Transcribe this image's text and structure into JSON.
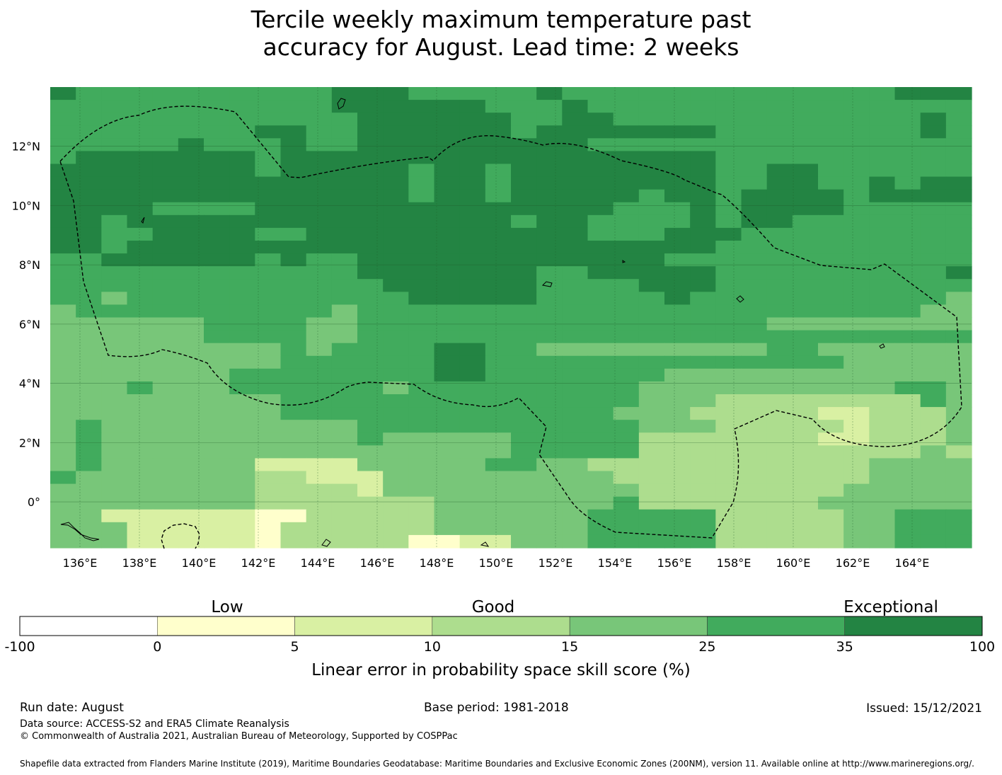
{
  "title": {
    "line1": "Tercile weekly maximum temperature past",
    "line2": "accuracy for August. Lead time: 2 weeks"
  },
  "map": {
    "lon_labels": [
      "136°E",
      "138°E",
      "140°E",
      "142°E",
      "144°E",
      "146°E",
      "148°E",
      "150°E",
      "152°E",
      "154°E",
      "156°E",
      "158°E",
      "160°E",
      "162°E",
      "164°E"
    ],
    "lon_values": [
      136,
      138,
      140,
      142,
      144,
      146,
      148,
      150,
      152,
      154,
      156,
      158,
      160,
      162,
      164
    ],
    "lat_labels": [
      "12°N",
      "10°N",
      "8°N",
      "6°N",
      "4°N",
      "2°N",
      "0°"
    ],
    "lat_values": [
      12,
      10,
      8,
      6,
      4,
      2,
      0
    ],
    "extent": {
      "lon_min": 135,
      "lon_max": 166,
      "lat_min": -1.55,
      "lat_max": 14
    },
    "grid_resolution_deg": 0.833,
    "gridlines": true,
    "boundary": "dashed EEZ outline"
  },
  "colorbar": {
    "category_labels": [
      "Low",
      "Good",
      "Exceptional"
    ],
    "ticks": [
      "-100",
      "0",
      "5",
      "10",
      "15",
      "25",
      "35",
      "100"
    ],
    "colors": [
      "#ffffff",
      "#ffffcc",
      "#d9f0a3",
      "#addd8e",
      "#78c679",
      "#41ab5d",
      "#238443"
    ],
    "label": "Linear error in probability space skill score (%)"
  },
  "footer": {
    "run_date": "Run date: August",
    "base_period": "Base period: 1981-2018",
    "issued": "Issued: 15/12/2021",
    "data_source": "Data source: ACCESS-S2 and ERA5 Climate Reanalysis",
    "copyright": "© Commonwealth of Australia 2021, Australian Bureau of Meteorology, Supported by COSPPac",
    "shapefile": "Shapefile data extracted from Flanders Marine Institute (2019), Maritime Boundaries Geodatabase: Maritime Boundaries and Exclusive Economic Zones (200NM), version 11. Available online at http://www.marineregions.org/."
  },
  "chart_data": {
    "type": "heatmap",
    "title": "Tercile weekly maximum temperature past accuracy for August. Lead time: 2 weeks",
    "colorbar_label": "Linear error in probability space skill score (%)",
    "value_classes": [
      "-100–0",
      "0–5",
      "5–10",
      "10–15",
      "15–25",
      "25–35",
      "35–100"
    ],
    "row_order": "north to south, latitude 13.3°N to -1.1°N",
    "col_order": "west to east, longitude 135.4°E to 165.6°E",
    "class_index_legend": "1=0–5, 2=5–10, 3=10–15, 4=15–25, 5=25–35, 6=35–100",
    "rows": [
      "655555555556665555565555555555555666",
      "555555555556666665556555555555555555",
      "555555555555666666556655555555555565",
      "555555556655666666566666665555555565",
      "555556555655666666666555555555555555",
      "566666665666666666666666665555555555",
      "666666665666665665666666665566555555",
      "666666666666665665666666665566556566",
      "666666666666665665666665665666656666",
      "666655556666666666666655565666655555",
      "665666666666666666566555565665555555",
      "665566665566666666666555666555555555",
      "665666666666666666666666665555555555",
      "556666665655666666666666555555555555",
      "555555555555666666655666665555555556",
      "555555555555566666655556665555555555",
      "554555555555556666655555655555555554",
      "455555555554555555555555555555555544",
      "444444555544555555555555555544444444",
      "444444555544555555555555555555555555",
      "444444444545555665544444444455444444",
      "444444444555555665555555555555544444",
      "444444455555555665555555444444444444",
      "444544455555545555555554444444444554",
      "444444444555555555555554443333333354",
      "444444444555555555555544433333223334",
      "454444444444555555555554443333323334",
      "454444444444544444555553333333223334",
      "454444444444444444555553333333333343",
      "454444442222444445544333333333334444",
      "544444443322244444444433333333334444",
      "444444443333244444444443333333344444",
      "444444443333333444444453333333444444",
      "442222221133333444444555553333344555",
      "444222221333333444444555553333344555",
      "444222221333331122444555553333344555"
    ]
  }
}
